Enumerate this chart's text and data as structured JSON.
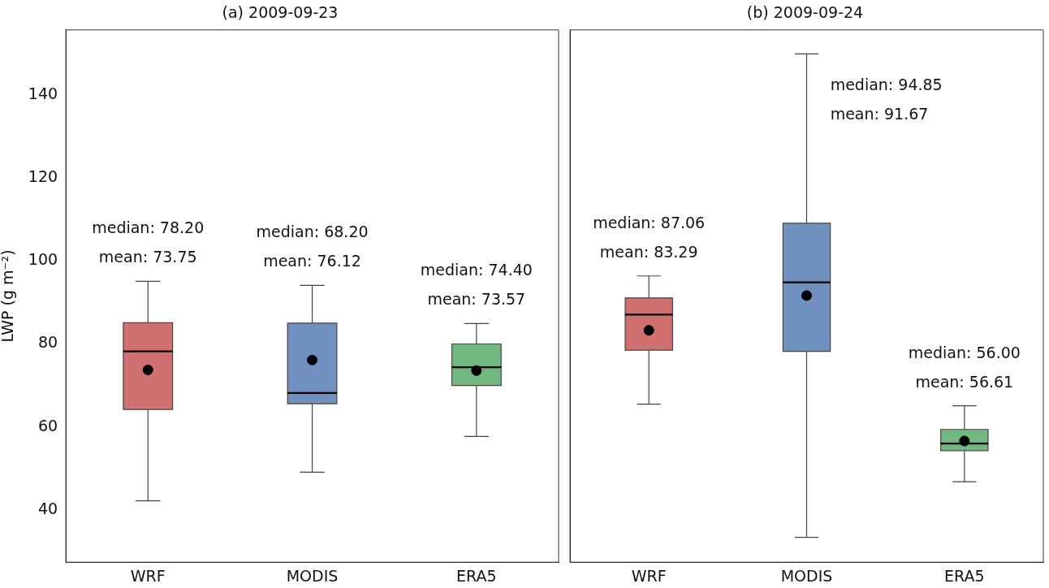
{
  "chart_data": [
    {
      "type": "box",
      "title": "(a) 2009-09-23",
      "ylabel": "LWP (g m⁻²)",
      "categories": [
        "WRF",
        "MODIS",
        "ERA5"
      ],
      "colors": [
        "#d07070",
        "#7090c0",
        "#70b880"
      ],
      "boxes": [
        {
          "low": 42.2,
          "q1": 64.2,
          "median": 78.2,
          "q3": 85.1,
          "high": 95.1,
          "mean": 73.75
        },
        {
          "low": 49.1,
          "q1": 65.6,
          "median": 68.2,
          "q3": 85.0,
          "high": 94.1,
          "mean": 76.12
        },
        {
          "low": 57.7,
          "q1": 70.0,
          "median": 74.4,
          "q3": 80.0,
          "high": 84.9,
          "mean": 73.57
        }
      ],
      "ylim": [
        27.4,
        155.7
      ],
      "yticks": [
        40,
        60,
        80,
        100,
        120,
        140
      ],
      "grid": false,
      "marker": "circle",
      "annotations": [
        "median: 78.20",
        "mean: 73.75",
        "median: 68.20",
        "mean: 76.12",
        "median: 74.40",
        "mean: 73.57"
      ]
    },
    {
      "type": "box",
      "title": "(b) 2009-09-24",
      "categories": [
        "WRF",
        "MODIS",
        "ERA5"
      ],
      "colors": [
        "#d07070",
        "#7090c0",
        "#70b880"
      ],
      "boxes": [
        {
          "low": 65.5,
          "q1": 78.5,
          "median": 87.06,
          "q3": 91.1,
          "high": 96.4,
          "mean": 83.29
        },
        {
          "low": 33.4,
          "q1": 78.2,
          "median": 94.85,
          "q3": 109.1,
          "high": 149.9,
          "mean": 91.67
        },
        {
          "low": 46.8,
          "q1": 54.3,
          "median": 56.0,
          "q3": 59.4,
          "high": 65.1,
          "mean": 56.61
        }
      ],
      "ylim": [
        27.4,
        155.7
      ],
      "yticks": [
        40,
        60,
        80,
        100,
        120,
        140
      ],
      "grid": false,
      "marker": "circle",
      "tick_labels": "x",
      "annotations": [
        "median: 87.06",
        "mean: 83.29",
        "median: 94.85",
        "mean: 91.67",
        "median: 56.00",
        "mean: 56.61"
      ]
    }
  ]
}
